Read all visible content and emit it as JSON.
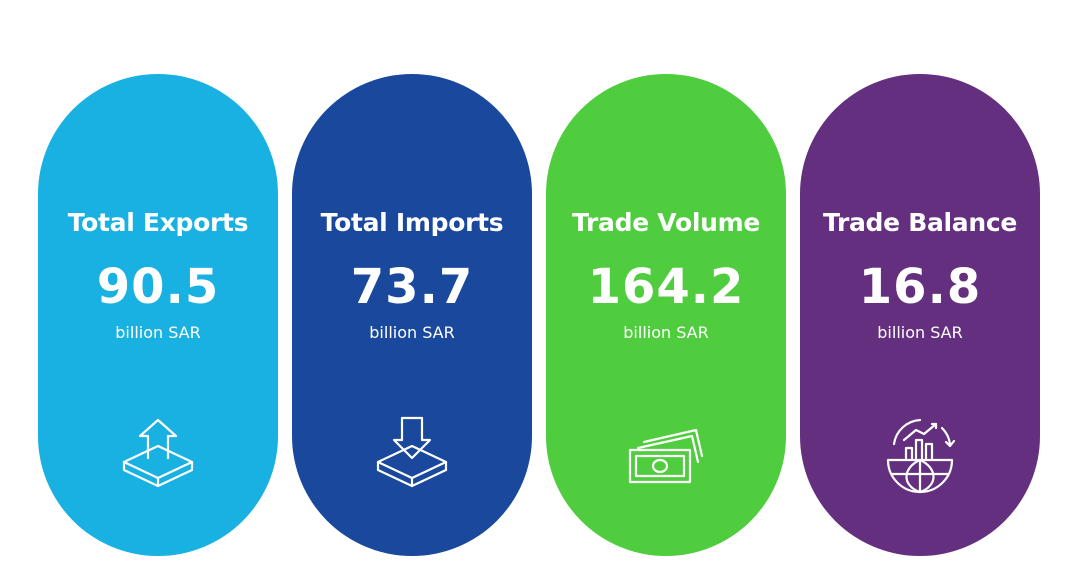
{
  "cards": [
    {
      "title": "Total Exports",
      "value": "90.5",
      "unit": "billion SAR"
    },
    {
      "title": "Total Imports",
      "value": "73.7",
      "unit": "billion SAR"
    },
    {
      "title": "Trade Volume",
      "value": "164.2",
      "unit": "billion SAR"
    },
    {
      "title": "Trade Balance",
      "value": "16.8",
      "unit": "billion SAR"
    }
  ]
}
